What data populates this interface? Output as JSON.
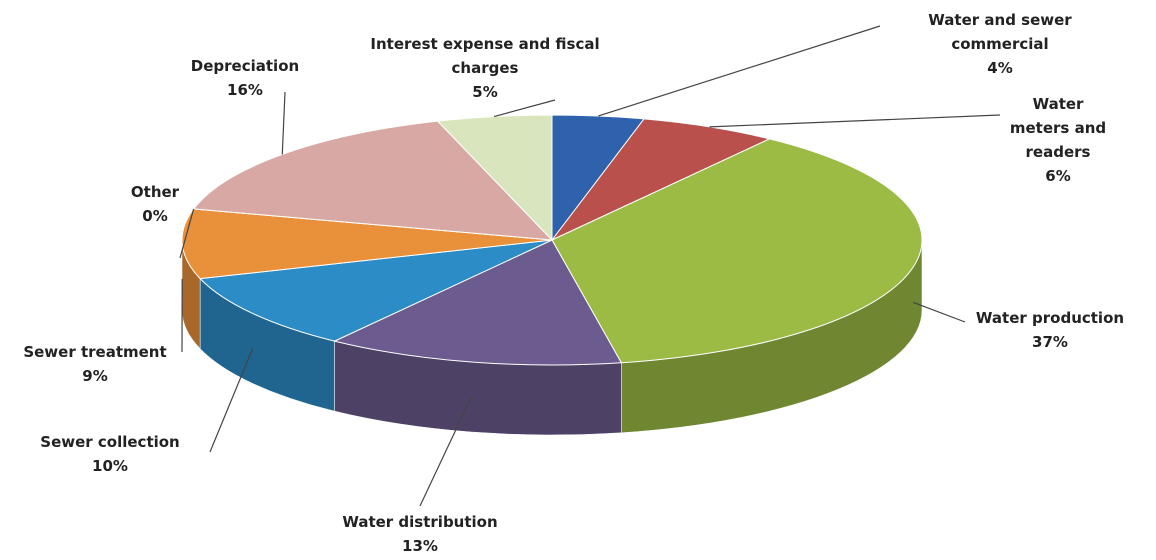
{
  "chart_data": {
    "type": "pie3d",
    "categories": [
      "Water and sewer commercial",
      "Water meters and readers",
      "Water production",
      "Water distribution",
      "Sewer collection",
      "Sewer treatment",
      "Other",
      "Depreciation",
      "Interest expense and fiscal charges"
    ],
    "values": [
      4,
      6,
      37,
      13,
      10,
      9,
      0,
      16,
      5
    ],
    "value_labels": [
      "4%",
      "6%",
      "37%",
      "13%",
      "10%",
      "9%",
      "0%",
      "16%",
      "5%"
    ],
    "colors": [
      "#2e62ad",
      "#b9504c",
      "#9bbb45",
      "#6b5b8e",
      "#2b8cc6",
      "#e8903a",
      "#8a8a8a",
      "#d8a9a4",
      "#d9e6bd"
    ]
  }
}
